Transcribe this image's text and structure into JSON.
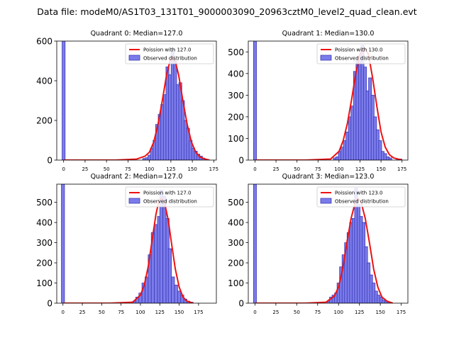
{
  "suptitle": "Data file: modeM0/AS1T03_131T01_9000003090_20963cztM0_level2_quad_clean.evt",
  "colors": {
    "bar_fill": "#7b7bea",
    "bar_edge": "#3a3ab8",
    "line": "#ee1111",
    "axes": "#000000"
  },
  "chart_data": [
    {
      "type": "bar",
      "title": "Quadrant 0: Median=127.0",
      "xlim": [
        -8,
        178
      ],
      "xticks": [
        0,
        25,
        50,
        75,
        100,
        125,
        150,
        175
      ],
      "ylim": [
        0,
        600
      ],
      "yticks": [
        0,
        200,
        400,
        600
      ],
      "bin_width": 3.5,
      "legend": {
        "line_label": "Poission with 127.0",
        "bar_label": "Observed distribution",
        "position": "top-right"
      },
      "bins": [
        [
          0,
          600
        ],
        [
          94,
          8
        ],
        [
          97,
          12
        ],
        [
          100,
          25
        ],
        [
          103,
          60
        ],
        [
          106,
          100
        ],
        [
          109,
          180
        ],
        [
          112,
          230
        ],
        [
          115,
          280
        ],
        [
          118,
          330
        ],
        [
          121,
          470
        ],
        [
          124,
          430
        ],
        [
          127,
          560
        ],
        [
          130,
          500
        ],
        [
          133,
          380
        ],
        [
          136,
          390
        ],
        [
          139,
          300
        ],
        [
          142,
          200
        ],
        [
          145,
          160
        ],
        [
          148,
          100
        ],
        [
          151,
          60
        ],
        [
          154,
          45
        ],
        [
          157,
          30
        ],
        [
          160,
          20
        ],
        [
          163,
          10
        ]
      ],
      "curve": [
        [
          0,
          0
        ],
        [
          60,
          0
        ],
        [
          85,
          5
        ],
        [
          95,
          20
        ],
        [
          100,
          40
        ],
        [
          105,
          90
        ],
        [
          110,
          180
        ],
        [
          115,
          300
        ],
        [
          120,
          430
        ],
        [
          124,
          500
        ],
        [
          127,
          520
        ],
        [
          130,
          500
        ],
        [
          134,
          430
        ],
        [
          139,
          300
        ],
        [
          144,
          180
        ],
        [
          149,
          90
        ],
        [
          154,
          40
        ],
        [
          159,
          15
        ],
        [
          165,
          5
        ],
        [
          170,
          0
        ]
      ]
    },
    {
      "type": "bar",
      "title": "Quadrant 1: Median=130.0",
      "xlim": [
        -8,
        182
      ],
      "xticks": [
        0,
        25,
        50,
        75,
        100,
        125,
        150,
        175
      ],
      "ylim": [
        0,
        550
      ],
      "yticks": [
        0,
        100,
        200,
        300,
        400,
        500
      ],
      "bin_width": 3.5,
      "legend": {
        "line_label": "Poission with 130.0",
        "bar_label": "Observed distribution",
        "position": "top-right"
      },
      "bins": [
        [
          0,
          550
        ],
        [
          95,
          10
        ],
        [
          98,
          15
        ],
        [
          101,
          40
        ],
        [
          104,
          60
        ],
        [
          107,
          90
        ],
        [
          110,
          130
        ],
        [
          113,
          200
        ],
        [
          116,
          250
        ],
        [
          119,
          410
        ],
        [
          122,
          460
        ],
        [
          125,
          480
        ],
        [
          128,
          530
        ],
        [
          131,
          430
        ],
        [
          134,
          320
        ],
        [
          137,
          380
        ],
        [
          140,
          300
        ],
        [
          143,
          200
        ],
        [
          146,
          140
        ],
        [
          149,
          90
        ],
        [
          152,
          40
        ],
        [
          155,
          30
        ],
        [
          158,
          15
        ],
        [
          161,
          10
        ],
        [
          170,
          5
        ],
        [
          173,
          5
        ]
      ],
      "curve": [
        [
          0,
          0
        ],
        [
          60,
          0
        ],
        [
          90,
          5
        ],
        [
          100,
          40
        ],
        [
          105,
          90
        ],
        [
          110,
          170
        ],
        [
          115,
          280
        ],
        [
          120,
          400
        ],
        [
          125,
          490
        ],
        [
          130,
          520
        ],
        [
          135,
          490
        ],
        [
          140,
          380
        ],
        [
          145,
          250
        ],
        [
          150,
          130
        ],
        [
          155,
          60
        ],
        [
          160,
          25
        ],
        [
          165,
          10
        ],
        [
          175,
          0
        ]
      ]
    },
    {
      "type": "bar",
      "title": "Quadrant 2: Median=127.0",
      "xlim": [
        -8,
        198
      ],
      "xticks": [
        0,
        25,
        50,
        75,
        100,
        125,
        150,
        175
      ],
      "ylim": [
        0,
        590
      ],
      "yticks": [
        0,
        100,
        200,
        300,
        400,
        500
      ],
      "bin_width": 4,
      "legend": {
        "line_label": "Poission with 127.0",
        "bar_label": "Observed distribution",
        "position": "top-right"
      },
      "bins": [
        [
          0,
          590
        ],
        [
          92,
          10
        ],
        [
          96,
          30
        ],
        [
          100,
          50
        ],
        [
          104,
          100
        ],
        [
          108,
          130
        ],
        [
          112,
          240
        ],
        [
          116,
          350
        ],
        [
          120,
          390
        ],
        [
          124,
          430
        ],
        [
          127,
          560
        ],
        [
          131,
          530
        ],
        [
          135,
          420
        ],
        [
          138,
          270
        ],
        [
          142,
          130
        ],
        [
          146,
          90
        ],
        [
          150,
          60
        ],
        [
          154,
          40
        ],
        [
          158,
          20
        ],
        [
          162,
          10
        ],
        [
          166,
          5
        ]
      ],
      "curve": [
        [
          0,
          0
        ],
        [
          60,
          0
        ],
        [
          90,
          5
        ],
        [
          100,
          40
        ],
        [
          105,
          90
        ],
        [
          110,
          180
        ],
        [
          115,
          310
        ],
        [
          120,
          440
        ],
        [
          124,
          510
        ],
        [
          127,
          520
        ],
        [
          131,
          500
        ],
        [
          136,
          410
        ],
        [
          140,
          300
        ],
        [
          145,
          170
        ],
        [
          150,
          80
        ],
        [
          155,
          30
        ],
        [
          160,
          10
        ],
        [
          168,
          0
        ]
      ]
    },
    {
      "type": "bar",
      "title": "Quadrant 3: Median=123.0",
      "xlim": [
        -8,
        183
      ],
      "xticks": [
        0,
        25,
        50,
        75,
        100,
        125,
        150,
        175
      ],
      "ylim": [
        0,
        590
      ],
      "yticks": [
        0,
        100,
        200,
        300,
        400,
        500
      ],
      "bin_width": 3.5,
      "legend": {
        "line_label": "Poission with 123.0",
        "bar_label": "Observed distribution",
        "position": "top-right"
      },
      "bins": [
        [
          0,
          590
        ],
        [
          88,
          10
        ],
        [
          91,
          30
        ],
        [
          94,
          40
        ],
        [
          97,
          50
        ],
        [
          100,
          100
        ],
        [
          103,
          180
        ],
        [
          106,
          240
        ],
        [
          109,
          300
        ],
        [
          112,
          350
        ],
        [
          115,
          400
        ],
        [
          118,
          420
        ],
        [
          121,
          570
        ],
        [
          124,
          490
        ],
        [
          127,
          430
        ],
        [
          130,
          400
        ],
        [
          133,
          280
        ],
        [
          136,
          200
        ],
        [
          139,
          140
        ],
        [
          142,
          100
        ],
        [
          145,
          60
        ],
        [
          148,
          40
        ],
        [
          151,
          30
        ],
        [
          154,
          15
        ],
        [
          157,
          10
        ],
        [
          160,
          5
        ]
      ],
      "curve": [
        [
          0,
          0
        ],
        [
          60,
          0
        ],
        [
          85,
          5
        ],
        [
          95,
          35
        ],
        [
          100,
          80
        ],
        [
          105,
          170
        ],
        [
          110,
          300
        ],
        [
          115,
          420
        ],
        [
          120,
          500
        ],
        [
          123,
          520
        ],
        [
          127,
          500
        ],
        [
          132,
          420
        ],
        [
          137,
          300
        ],
        [
          142,
          170
        ],
        [
          147,
          80
        ],
        [
          152,
          30
        ],
        [
          158,
          10
        ],
        [
          165,
          0
        ]
      ]
    }
  ]
}
